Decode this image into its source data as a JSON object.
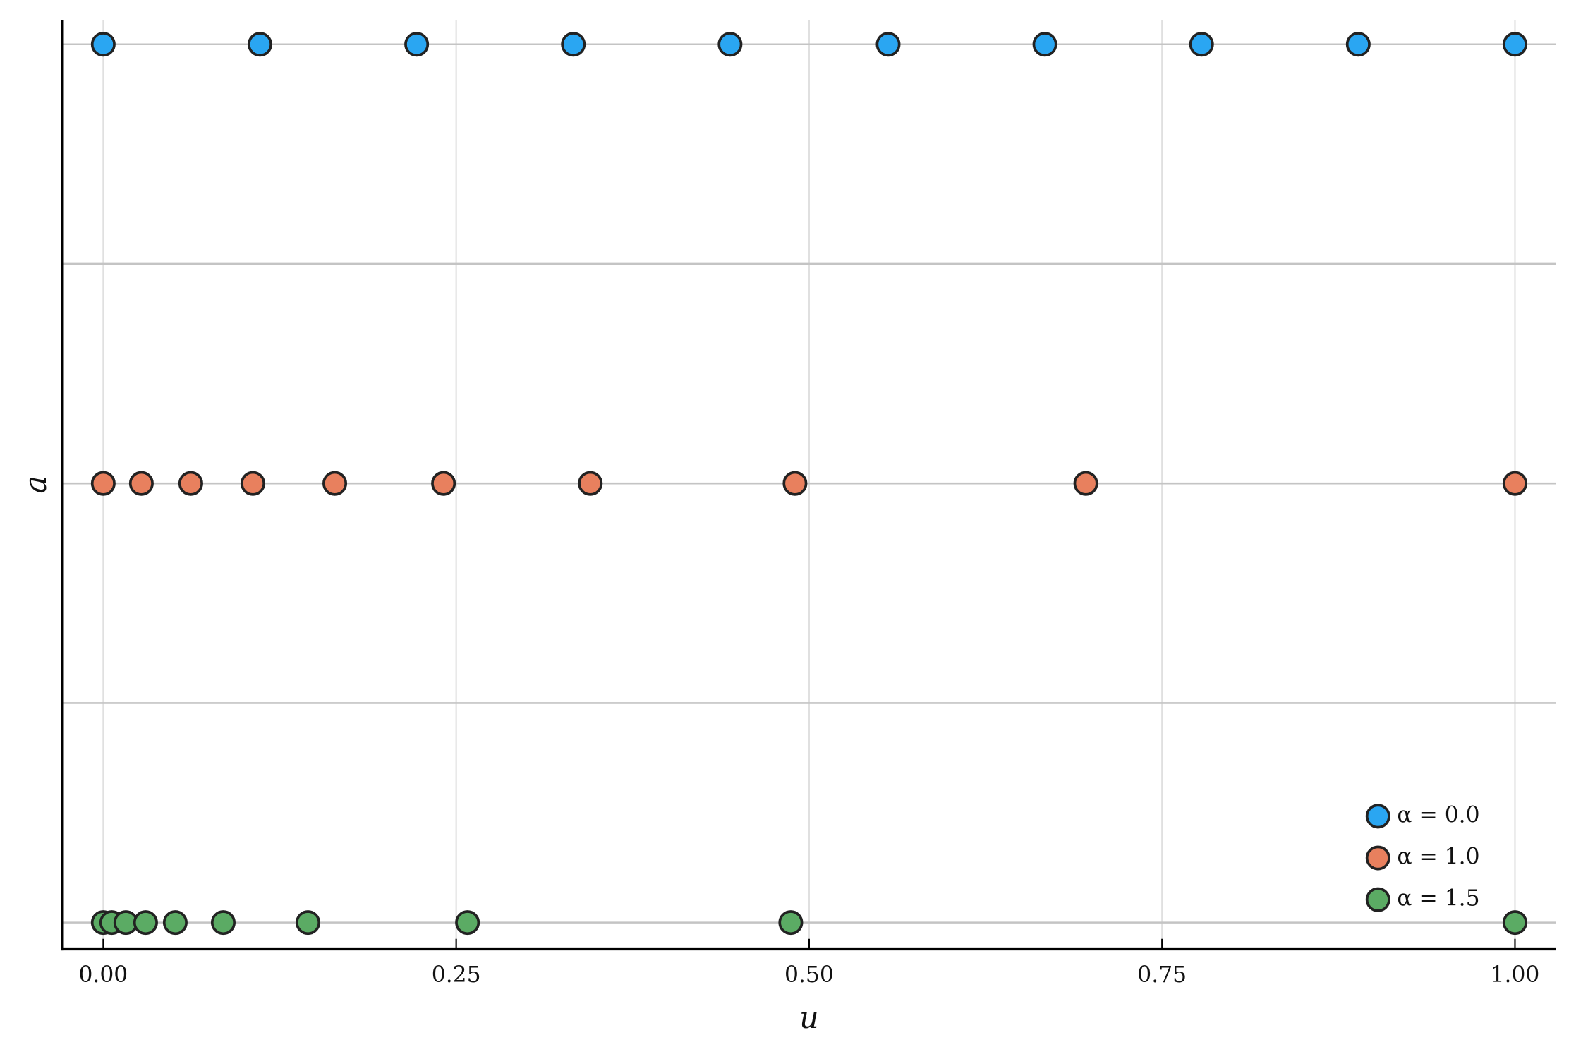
{
  "chart_data": {
    "type": "scatter",
    "xlabel": "u",
    "ylabel": "a",
    "xlim": [
      -0.029,
      1.029
    ],
    "ylim": [
      0.94,
      3.055
    ],
    "xticks": [
      {
        "value": 0,
        "label": "0.00"
      },
      {
        "value": 0.25,
        "label": "0.25"
      },
      {
        "value": 0.5,
        "label": "0.50"
      },
      {
        "value": 0.75,
        "label": "0.75"
      },
      {
        "value": 1,
        "label": "1.00"
      }
    ],
    "yticks": [
      1,
      1.5,
      2,
      2.5,
      3
    ],
    "grid": true,
    "legend": "lower right",
    "series": [
      {
        "name": "α = 0.0",
        "color": "#2aa6f2",
        "x": [
          0,
          0.111,
          0.222,
          0.333,
          0.444,
          0.556,
          0.667,
          0.778,
          0.889,
          1.0
        ],
        "values": [
          3,
          3,
          3,
          3,
          3,
          3,
          3,
          3,
          3,
          3
        ]
      },
      {
        "name": "α = 1.0",
        "color": "#e8805e",
        "x": [
          0,
          0.027,
          0.062,
          0.106,
          0.164,
          0.241,
          0.345,
          0.49,
          0.696,
          1.0
        ],
        "values": [
          2,
          2,
          2,
          2,
          2,
          2,
          2,
          2,
          2,
          2
        ]
      },
      {
        "name": "α = 1.5",
        "color": "#5bab64",
        "x": [
          0,
          0.006,
          0.016,
          0.03,
          0.051,
          0.085,
          0.145,
          0.258,
          0.487,
          1.0
        ],
        "values": [
          1,
          1,
          1,
          1,
          1,
          1,
          1,
          1,
          1,
          1
        ]
      }
    ]
  }
}
